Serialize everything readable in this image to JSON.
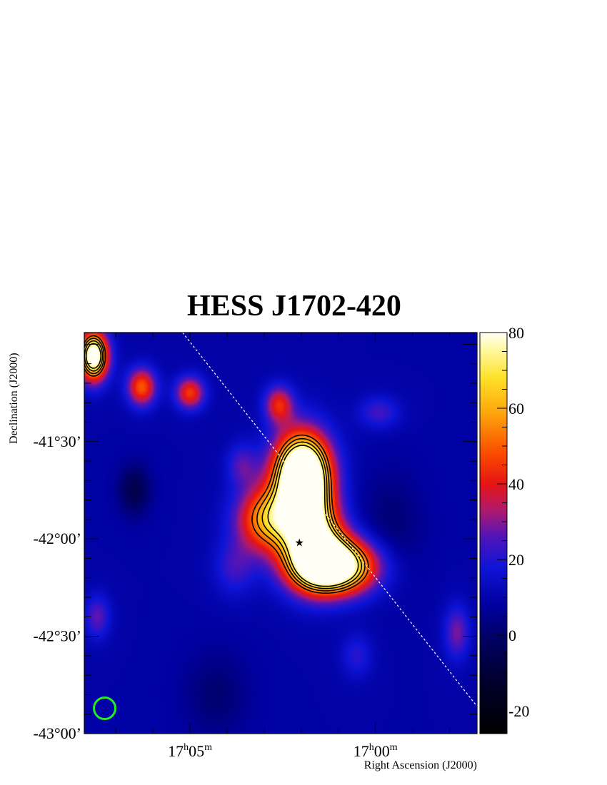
{
  "chart_data": {
    "type": "heatmap",
    "title": "HESS J1702-420",
    "xlabel": "Right Ascension (J2000)",
    "ylabel": "Declination (J2000)",
    "x_ticks": [
      {
        "ra_min": 1025,
        "hour": "17",
        "minute": "05"
      },
      {
        "ra_min": 1020,
        "hour": "17",
        "minute": "00"
      }
    ],
    "x_range_ra_min": [
      1027.85,
      1017.26
    ],
    "y_ticks": [
      {
        "dec": -41.5,
        "label": "-41°30’"
      },
      {
        "dec": -42.0,
        "label": "-42°00’"
      },
      {
        "dec": -42.5,
        "label": "-42°30’"
      },
      {
        "dec": -43.0,
        "label": "-43°00’"
      }
    ],
    "y_range_dec": [
      -43.0,
      -40.94
    ],
    "colorbar": {
      "range": [
        -26,
        80
      ],
      "ticks": [
        80,
        60,
        40,
        20,
        0,
        -20
      ]
    },
    "sources": [
      {
        "ra_min": 1022.0,
        "dec": -41.65,
        "value": 70,
        "sigma_ra": 0.55,
        "sigma_dec": 0.14
      },
      {
        "ra_min": 1021.1,
        "dec": -42.14,
        "value": 82,
        "sigma_ra": 0.8,
        "sigma_dec": 0.1
      },
      {
        "ra_min": 1021.6,
        "dec": -42.02,
        "value": 48,
        "sigma_ra": 0.55,
        "sigma_dec": 0.15
      },
      {
        "ra_min": 1022.9,
        "dec": -41.9,
        "value": 50,
        "sigma_ra": 0.6,
        "sigma_dec": 0.12
      },
      {
        "ra_min": 1021.9,
        "dec": -41.8,
        "value": 45,
        "sigma_ra": 0.5,
        "sigma_dec": 0.2
      },
      {
        "ra_min": 1027.6,
        "dec": -41.06,
        "value": 80,
        "sigma_ra": 0.28,
        "sigma_dec": 0.09
      },
      {
        "ra_min": 1026.3,
        "dec": -41.22,
        "value": 40,
        "sigma_ra": 0.28,
        "sigma_dec": 0.07
      },
      {
        "ra_min": 1025.0,
        "dec": -41.25,
        "value": 36,
        "sigma_ra": 0.28,
        "sigma_dec": 0.06
      },
      {
        "ra_min": 1022.6,
        "dec": -41.31,
        "value": 32,
        "sigma_ra": 0.28,
        "sigma_dec": 0.07
      },
      {
        "ra_min": 1023.6,
        "dec": -41.62,
        "value": 16,
        "sigma_ra": 0.3,
        "sigma_dec": 0.08
      },
      {
        "ra_min": 1026.5,
        "dec": -41.75,
        "value": -15,
        "sigma_ra": 0.3,
        "sigma_dec": 0.09
      },
      {
        "ra_min": 1019.9,
        "dec": -41.35,
        "value": 15,
        "sigma_ra": 0.4,
        "sigma_dec": 0.06
      },
      {
        "ra_min": 1017.8,
        "dec": -42.48,
        "value": 20,
        "sigma_ra": 0.25,
        "sigma_dec": 0.1
      },
      {
        "ra_min": 1027.5,
        "dec": -42.4,
        "value": 18,
        "sigma_ra": 0.25,
        "sigma_dec": 0.08
      },
      {
        "ra_min": 1023.8,
        "dec": -42.15,
        "value": 14,
        "sigma_ra": 0.4,
        "sigma_dec": 0.1
      },
      {
        "ra_min": 1020.5,
        "dec": -42.6,
        "value": 12,
        "sigma_ra": 0.3,
        "sigma_dec": 0.08
      },
      {
        "ra_min": 1024.3,
        "dec": -42.8,
        "value": -8,
        "sigma_ra": 0.6,
        "sigma_dec": 0.15
      },
      {
        "ra_min": 1019.6,
        "dec": -41.95,
        "value": -8,
        "sigma_ra": 0.6,
        "sigma_dec": 0.2
      }
    ],
    "contour_levels": [
      50,
      57,
      64,
      71
    ],
    "galactic_plane": [
      {
        "ra_min": 1025.2,
        "dec": -40.94
      },
      {
        "ra_min": 1017.26,
        "dec": -42.86
      }
    ],
    "star_marker": {
      "ra_min": 1022.05,
      "dec": -42.02
    },
    "psf_circle": {
      "ra_min": 1027.3,
      "dec": -42.87,
      "radius_deg": 0.055,
      "color": "#22ee22"
    }
  }
}
